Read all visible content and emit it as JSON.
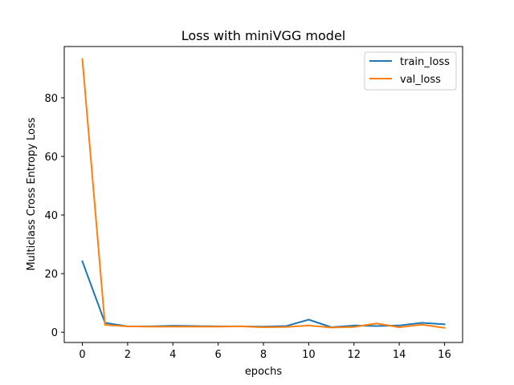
{
  "chart_data": {
    "type": "line",
    "title": "Loss with miniVGG model",
    "xlabel": "epochs",
    "ylabel": "Multiclass Cross Entropy Loss",
    "xlim": [
      -0.8,
      16.8
    ],
    "ylim": [
      -3.5,
      97.5
    ],
    "xticks": [
      0,
      2,
      4,
      6,
      8,
      10,
      12,
      14,
      16
    ],
    "yticks": [
      0,
      20,
      40,
      60,
      80
    ],
    "grid": false,
    "legend_position": "top-right",
    "x": [
      0,
      1,
      2,
      3,
      4,
      5,
      6,
      7,
      8,
      9,
      10,
      11,
      12,
      13,
      14,
      15,
      16
    ],
    "series": [
      {
        "name": "train_loss",
        "color": "#1f77b4",
        "values": [
          24.2,
          3.2,
          2.0,
          2.0,
          2.2,
          2.1,
          2.0,
          2.0,
          1.9,
          2.1,
          4.3,
          1.7,
          2.3,
          2.1,
          2.3,
          3.2,
          2.7
        ]
      },
      {
        "name": "val_loss",
        "color": "#ff7f0e",
        "values": [
          93.2,
          2.5,
          2.0,
          1.9,
          1.9,
          1.9,
          1.9,
          2.0,
          1.7,
          1.8,
          2.3,
          1.6,
          1.8,
          3.0,
          1.7,
          2.6,
          1.5
        ]
      }
    ]
  }
}
